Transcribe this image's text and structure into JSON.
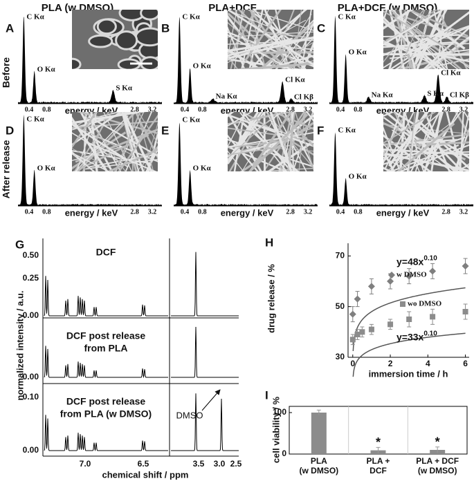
{
  "columns": [
    "PLA (w DMSO)",
    "PLA+DCF",
    "PLA+DCF  (w DMSO)"
  ],
  "rows": [
    "Before",
    "After release"
  ],
  "edx": {
    "x_label": "energy / keV",
    "x_ticks": [
      "0.4",
      "0.8",
      "2.8",
      "3.2"
    ],
    "panels": [
      {
        "letter": "A",
        "peaks": [
          "C Kα",
          "O Kα",
          "S Kα"
        ]
      },
      {
        "letter": "B",
        "peaks": [
          "C Kα",
          "O Kα",
          "Na Kα",
          "Cl Kα",
          "Cl Kβ"
        ]
      },
      {
        "letter": "C",
        "peaks": [
          "C Kα",
          "O Kα",
          "Na Kα",
          "S Kα",
          "Cl Kα",
          "Cl Kβ"
        ]
      },
      {
        "letter": "D",
        "peaks": [
          "C Kα",
          "O Kα"
        ]
      },
      {
        "letter": "E",
        "peaks": [
          "C Kα",
          "O Kα"
        ]
      },
      {
        "letter": "F",
        "peaks": [
          "C Kα",
          "O Kα"
        ]
      }
    ]
  },
  "nmr": {
    "letter": "G",
    "y_label": "normalized intensity / a.u.",
    "x_label": "chemical shift / ppm",
    "x_ticks": [
      "7.0",
      "6.5",
      "3.5",
      "3.0",
      "2.5"
    ],
    "panels": [
      {
        "title": [
          "DCF"
        ],
        "y_ticks": [
          "0.50",
          "0.25",
          "0.00"
        ]
      },
      {
        "title": [
          "DCF post release",
          "from PLA"
        ],
        "y_ticks": [
          "0.00"
        ]
      },
      {
        "title": [
          "DCF post release",
          "from PLA (w DMSO)"
        ],
        "y_ticks": [
          "0.10",
          "0.00"
        ]
      }
    ],
    "annotation": "DMSO"
  },
  "chart_data": [
    {
      "type": "scatter",
      "letter": "H",
      "x_label": "immersion time / h",
      "y_label": "drug release / %",
      "xlim": [
        -0.25,
        6.2
      ],
      "ylim": [
        30,
        75
      ],
      "xticks": [
        0,
        2,
        4,
        6
      ],
      "yticks": [
        30,
        50,
        70
      ],
      "series": [
        {
          "name": "w DMSO",
          "marker": "diamond",
          "color": "#7f7f7f",
          "x": [
            0,
            0.25,
            1,
            2,
            3,
            4.25,
            6
          ],
          "values": [
            47,
            53,
            58,
            60,
            62,
            64,
            66
          ],
          "errors": [
            3,
            3,
            3,
            3,
            3,
            3,
            3
          ],
          "fit_label": "y=48x",
          "fit_exponent": "0.10"
        },
        {
          "name": "wo DMSO",
          "marker": "square",
          "color": "#8c8c8c",
          "x": [
            0,
            0.25,
            0.5,
            1,
            2,
            3,
            4.25,
            6
          ],
          "values": [
            37,
            39,
            40,
            41,
            43,
            45,
            46,
            48
          ],
          "errors": [
            2,
            2,
            2,
            2,
            2,
            3,
            3,
            3
          ],
          "fit_label": "y=33x",
          "fit_exponent": "0.10"
        }
      ]
    },
    {
      "type": "bar",
      "letter": "I",
      "y_label": "cell viability / %",
      "categories": [
        "PLA\n(w DMSO)",
        "PLA +\nDCF",
        "PLA + DCF\n(w DMSO)"
      ],
      "values": [
        100,
        9,
        10
      ],
      "errors": [
        6,
        7,
        7
      ],
      "annotations": [
        null,
        "*",
        "*"
      ],
      "color": "#8c8c8c",
      "ylim": [
        0,
        115
      ],
      "yticks": [
        0,
        100
      ]
    }
  ]
}
